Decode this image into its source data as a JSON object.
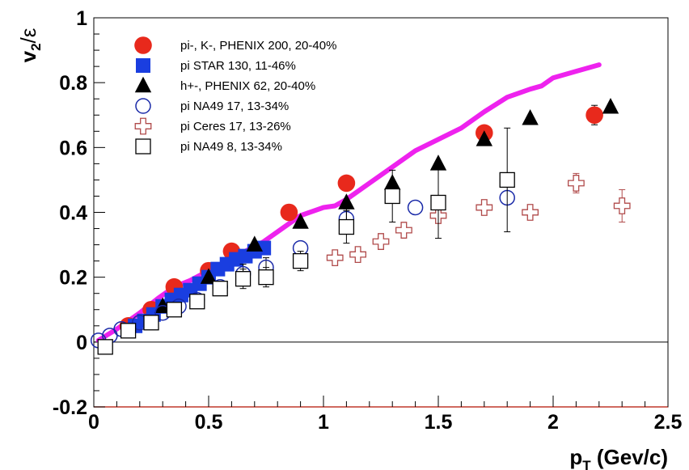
{
  "chart_data": {
    "type": "scatter",
    "xlabel": "p_T (Gev/c)",
    "ylabel": "v_2/ε",
    "xlim": [
      0,
      2.5
    ],
    "ylim": [
      -0.2,
      1
    ],
    "x_ticks": [
      0,
      0.5,
      1,
      1.5,
      2,
      2.5
    ],
    "y_ticks": [
      -0.2,
      0,
      0.2,
      0.4,
      0.6,
      0.8,
      1
    ],
    "x_tick_labels": [
      "0",
      "0.5",
      "1",
      "1.5",
      "2",
      "2.5"
    ],
    "y_tick_labels": [
      "-0.2",
      "0",
      "0.2",
      "0.4",
      "0.6",
      "0.8",
      "1"
    ],
    "legend_position": "top-left",
    "zero_line": true,
    "series": [
      {
        "name": "pi-, K-, PHENIX 200, 20-40%",
        "marker": "filled-circle",
        "color": "#e8291c",
        "points": [
          {
            "x": 0.15,
            "y": 0.05
          },
          {
            "x": 0.25,
            "y": 0.1
          },
          {
            "x": 0.35,
            "y": 0.17
          },
          {
            "x": 0.5,
            "y": 0.22
          },
          {
            "x": 0.6,
            "y": 0.28
          },
          {
            "x": 0.85,
            "y": 0.4
          },
          {
            "x": 1.1,
            "y": 0.49
          },
          {
            "x": 1.7,
            "y": 0.645
          },
          {
            "x": 2.18,
            "y": 0.7,
            "err": 0.03
          }
        ]
      },
      {
        "name": "pi STAR 130, 11-46%",
        "marker": "filled-square",
        "color": "#1a3ee0",
        "points": [
          {
            "x": 0.18,
            "y": 0.05
          },
          {
            "x": 0.22,
            "y": 0.065
          },
          {
            "x": 0.26,
            "y": 0.085
          },
          {
            "x": 0.3,
            "y": 0.11
          },
          {
            "x": 0.34,
            "y": 0.13
          },
          {
            "x": 0.38,
            "y": 0.145
          },
          {
            "x": 0.42,
            "y": 0.16
          },
          {
            "x": 0.46,
            "y": 0.18
          },
          {
            "x": 0.5,
            "y": 0.2
          },
          {
            "x": 0.54,
            "y": 0.225
          },
          {
            "x": 0.58,
            "y": 0.24
          },
          {
            "x": 0.62,
            "y": 0.255
          },
          {
            "x": 0.66,
            "y": 0.265
          },
          {
            "x": 0.7,
            "y": 0.28
          },
          {
            "x": 0.74,
            "y": 0.29
          }
        ]
      },
      {
        "name": "h+-, PHENIX 62, 20-40%",
        "marker": "filled-triangle",
        "color": "#000000",
        "points": [
          {
            "x": 0.3,
            "y": 0.11
          },
          {
            "x": 0.5,
            "y": 0.2
          },
          {
            "x": 0.7,
            "y": 0.3
          },
          {
            "x": 0.9,
            "y": 0.37
          },
          {
            "x": 1.1,
            "y": 0.43
          },
          {
            "x": 1.3,
            "y": 0.49
          },
          {
            "x": 1.5,
            "y": 0.55
          },
          {
            "x": 1.7,
            "y": 0.625
          },
          {
            "x": 1.9,
            "y": 0.69
          },
          {
            "x": 2.25,
            "y": 0.725
          }
        ]
      },
      {
        "name": "pi NA49 17, 13-34%",
        "marker": "open-circle",
        "color": "#1a2aa8",
        "points": [
          {
            "x": 0.02,
            "y": 0.005
          },
          {
            "x": 0.07,
            "y": 0.02
          },
          {
            "x": 0.12,
            "y": 0.04
          },
          {
            "x": 0.2,
            "y": 0.06
          },
          {
            "x": 0.3,
            "y": 0.09
          },
          {
            "x": 0.37,
            "y": 0.11
          },
          {
            "x": 0.45,
            "y": 0.13
          },
          {
            "x": 0.55,
            "y": 0.17
          },
          {
            "x": 0.65,
            "y": 0.21,
            "err": 0.03
          },
          {
            "x": 0.75,
            "y": 0.23,
            "err": 0.03
          },
          {
            "x": 0.9,
            "y": 0.29
          },
          {
            "x": 1.1,
            "y": 0.38,
            "err": 0.03
          },
          {
            "x": 1.4,
            "y": 0.415
          },
          {
            "x": 1.8,
            "y": 0.445
          }
        ]
      },
      {
        "name": "pi Ceres 17, 13-26%",
        "marker": "open-cross",
        "color": "#b04a4a",
        "points": [
          {
            "x": 1.05,
            "y": 0.26
          },
          {
            "x": 1.15,
            "y": 0.27
          },
          {
            "x": 1.25,
            "y": 0.31
          },
          {
            "x": 1.35,
            "y": 0.345
          },
          {
            "x": 1.5,
            "y": 0.39
          },
          {
            "x": 1.7,
            "y": 0.415
          },
          {
            "x": 1.9,
            "y": 0.4
          },
          {
            "x": 2.1,
            "y": 0.49,
            "err": 0.03
          },
          {
            "x": 2.3,
            "y": 0.42,
            "err": 0.05
          }
        ]
      },
      {
        "name": "pi NA49 8, 13-34%",
        "marker": "open-square",
        "color": "#000000",
        "points": [
          {
            "x": 0.05,
            "y": -0.015
          },
          {
            "x": 0.15,
            "y": 0.035
          },
          {
            "x": 0.25,
            "y": 0.06
          },
          {
            "x": 0.35,
            "y": 0.1
          },
          {
            "x": 0.45,
            "y": 0.125
          },
          {
            "x": 0.55,
            "y": 0.165
          },
          {
            "x": 0.65,
            "y": 0.195,
            "err": 0.03
          },
          {
            "x": 0.75,
            "y": 0.2,
            "err": 0.03
          },
          {
            "x": 0.9,
            "y": 0.25,
            "err": 0.03
          },
          {
            "x": 1.1,
            "y": 0.355,
            "err": 0.05
          },
          {
            "x": 1.3,
            "y": 0.45,
            "err": 0.08
          },
          {
            "x": 1.5,
            "y": 0.43,
            "err": 0.11
          },
          {
            "x": 1.8,
            "y": 0.5,
            "err": 0.16
          }
        ]
      }
    ],
    "curve": {
      "color": "#ee22ee",
      "points": [
        [
          0.02,
          0.005
        ],
        [
          0.1,
          0.04
        ],
        [
          0.2,
          0.09
        ],
        [
          0.28,
          0.135
        ],
        [
          0.35,
          0.17
        ],
        [
          0.42,
          0.19
        ],
        [
          0.5,
          0.22
        ],
        [
          0.58,
          0.25
        ],
        [
          0.66,
          0.28
        ],
        [
          0.74,
          0.31
        ],
        [
          0.82,
          0.35
        ],
        [
          0.9,
          0.39
        ],
        [
          1.0,
          0.415
        ],
        [
          1.05,
          0.42
        ],
        [
          1.1,
          0.44
        ],
        [
          1.2,
          0.49
        ],
        [
          1.3,
          0.54
        ],
        [
          1.4,
          0.59
        ],
        [
          1.5,
          0.625
        ],
        [
          1.6,
          0.66
        ],
        [
          1.7,
          0.71
        ],
        [
          1.8,
          0.755
        ],
        [
          1.9,
          0.78
        ],
        [
          1.95,
          0.79
        ],
        [
          2.0,
          0.815
        ],
        [
          2.1,
          0.835
        ],
        [
          2.2,
          0.855
        ]
      ]
    }
  }
}
